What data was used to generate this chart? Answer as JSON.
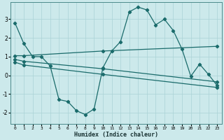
{
  "xlabel": "Humidex (Indice chaleur)",
  "background_color": "#cce9eb",
  "grid_color": "#aad3d6",
  "line_color": "#1a6b6b",
  "xlim": [
    -0.5,
    23.5
  ],
  "ylim": [
    -2.6,
    3.9
  ],
  "xticks": [
    0,
    1,
    2,
    3,
    4,
    5,
    6,
    7,
    8,
    9,
    10,
    11,
    12,
    13,
    14,
    15,
    16,
    17,
    18,
    19,
    20,
    21,
    22,
    23
  ],
  "yticks": [
    -2,
    -1,
    0,
    1,
    2,
    3
  ],
  "line1_x": [
    0,
    1,
    2,
    3,
    4,
    5,
    6,
    7,
    8,
    9,
    10,
    11,
    12,
    13,
    14,
    15,
    16,
    17,
    18,
    19,
    20,
    21,
    22,
    23
  ],
  "line1_y": [
    2.8,
    1.7,
    1.0,
    1.0,
    0.5,
    -1.3,
    -1.4,
    -1.9,
    -2.1,
    -1.8,
    0.4,
    1.3,
    1.8,
    3.4,
    3.65,
    3.5,
    2.7,
    3.0,
    2.4,
    1.4,
    -0.05,
    0.6,
    0.05,
    -0.55
  ],
  "line2_x": [
    0,
    1,
    10,
    23
  ],
  "line2_y": [
    1.05,
    1.05,
    1.3,
    1.55
  ],
  "line3_x": [
    0,
    1,
    10,
    23
  ],
  "line3_y": [
    0.85,
    0.75,
    0.35,
    -0.35
  ],
  "line4_x": [
    0,
    1,
    10,
    23
  ],
  "line4_y": [
    0.7,
    0.55,
    0.05,
    -0.65
  ]
}
